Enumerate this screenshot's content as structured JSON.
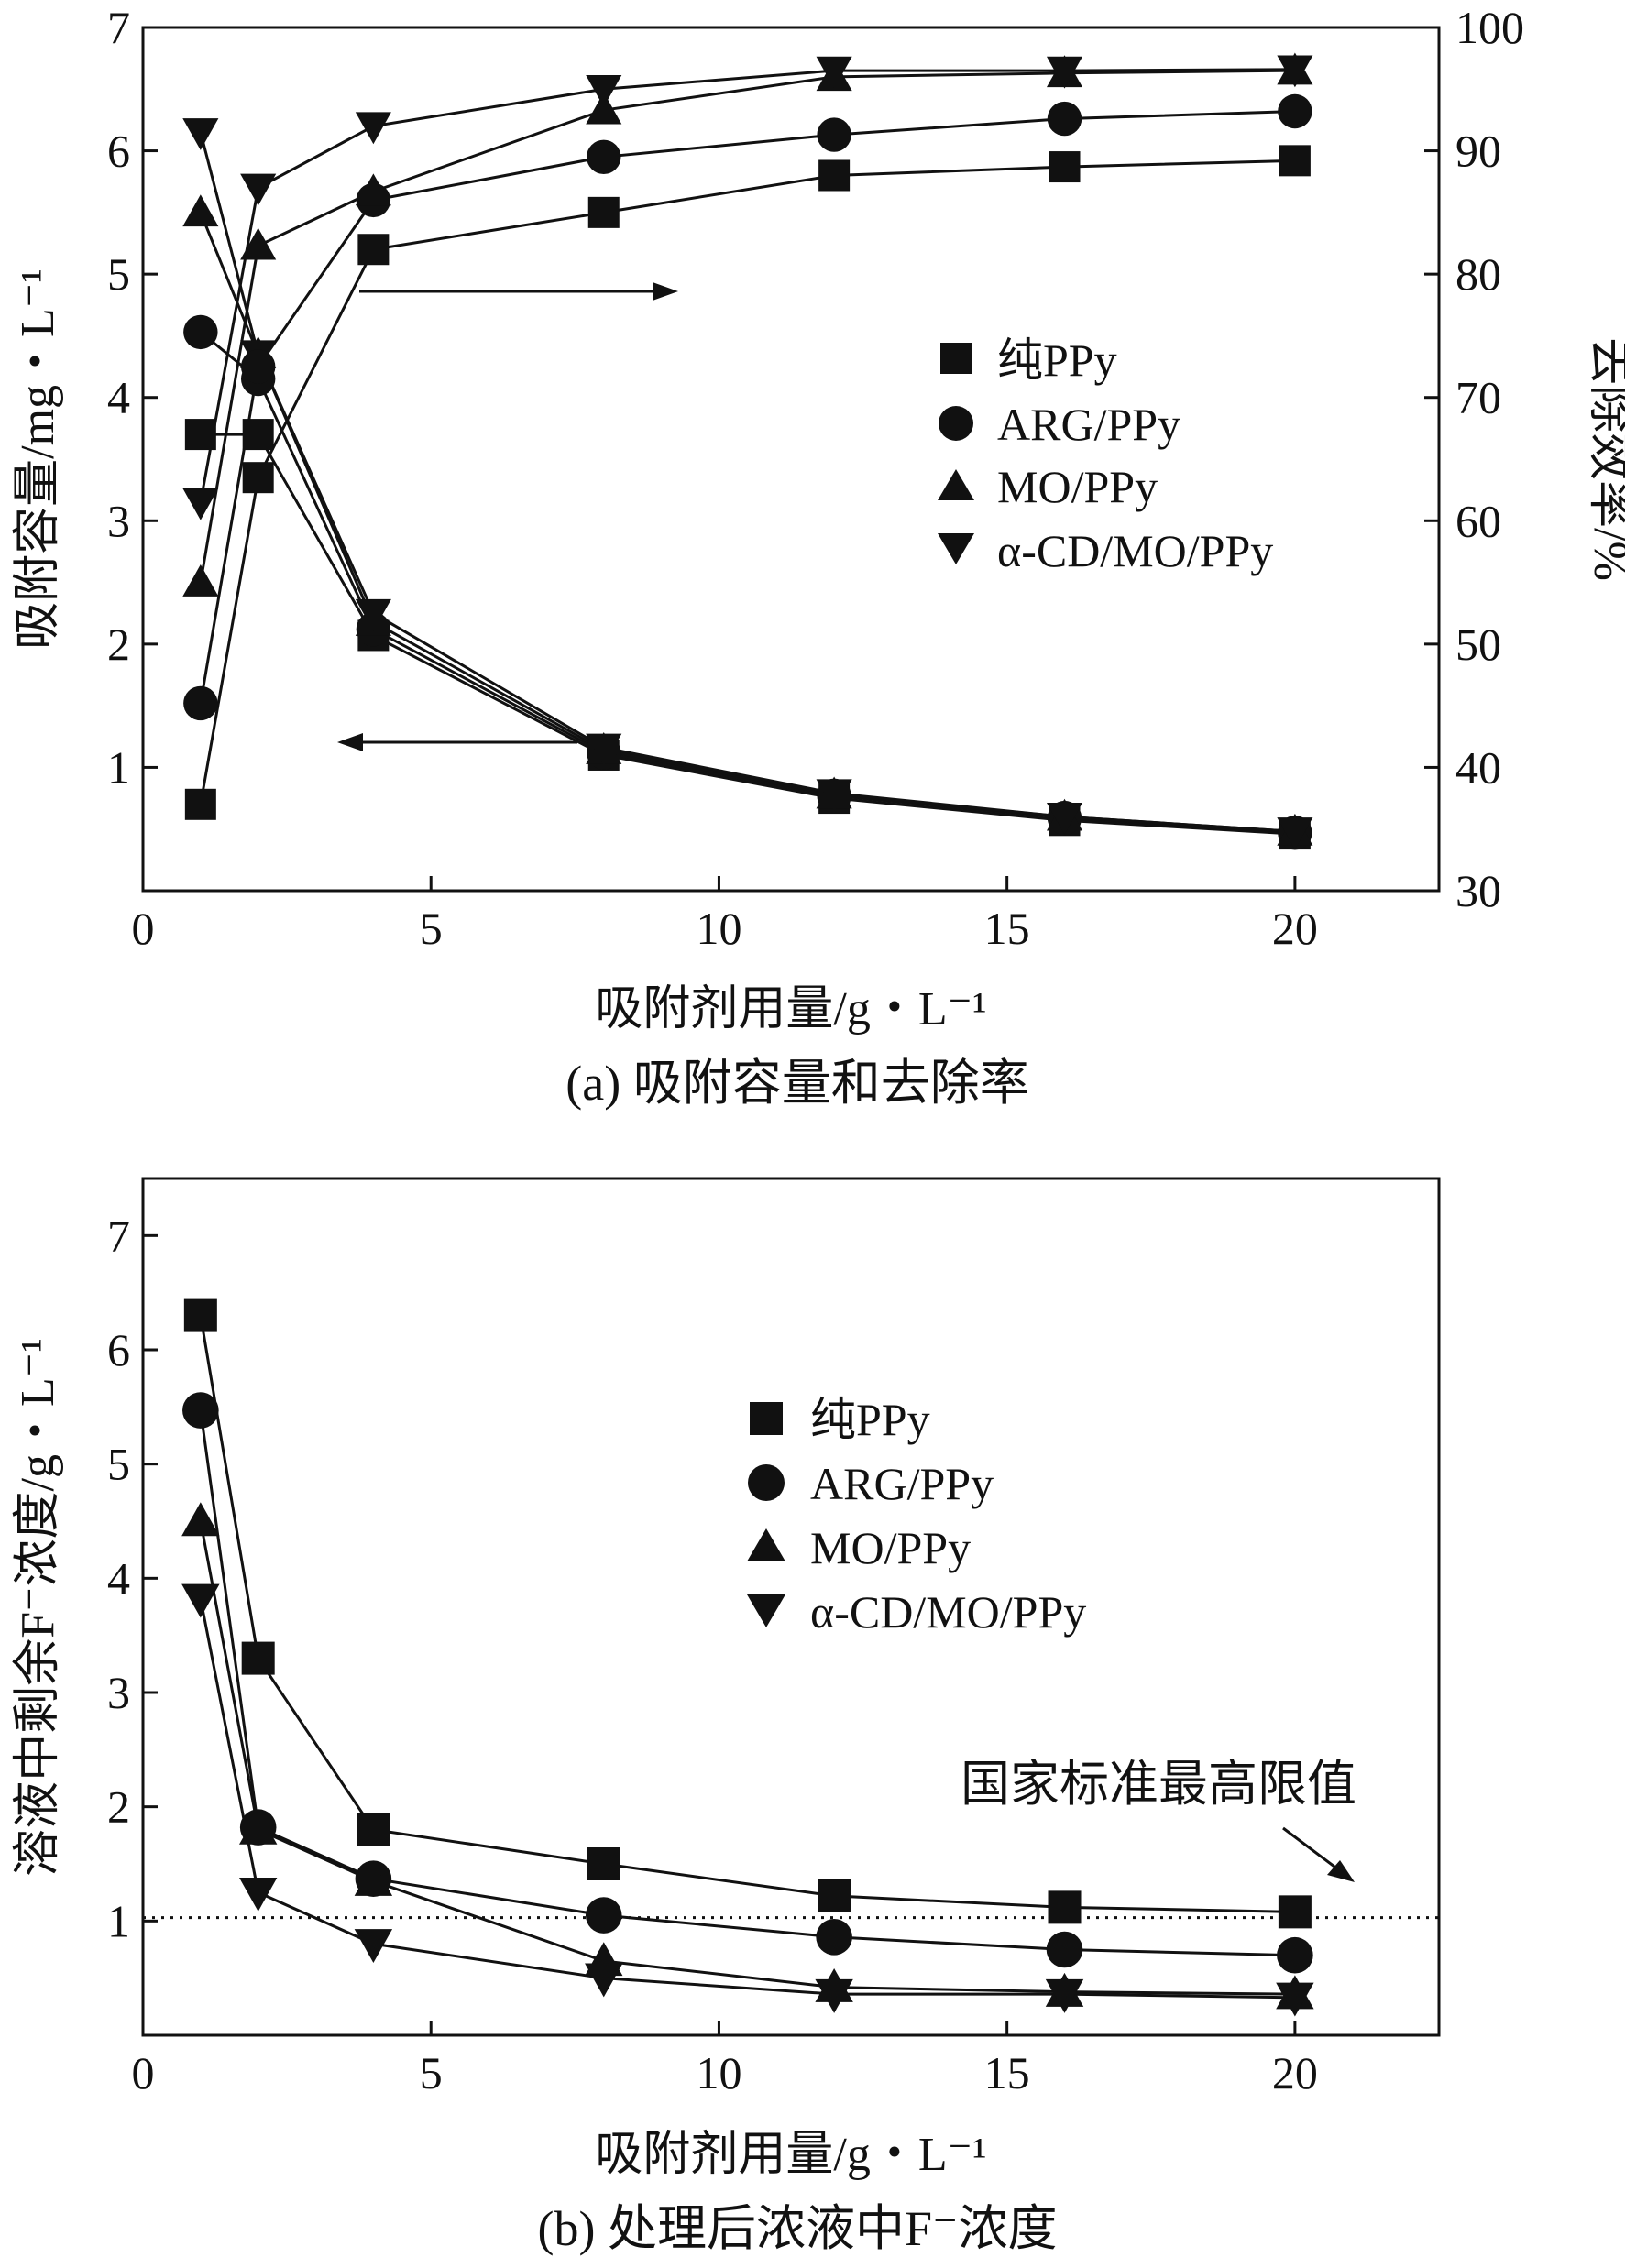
{
  "chart_data": [
    {
      "id": "a",
      "type": "line",
      "caption": "(a) 吸附容量和去除率",
      "xlabel": "吸附剂用量/g・L⁻¹",
      "ylabel_left": "吸附容量/mg・L⁻¹",
      "ylabel_right": "去除效率/%",
      "xlim": [
        0,
        22.5
      ],
      "ylim_left": [
        0,
        7
      ],
      "ylim_right": [
        30,
        100
      ],
      "x_ticks": [
        "0",
        "5",
        "10",
        "15",
        "20"
      ],
      "y_left_ticks": [
        "1",
        "2",
        "3",
        "4",
        "5",
        "6",
        "7"
      ],
      "y_right_ticks": [
        "30",
        "40",
        "50",
        "60",
        "70",
        "80",
        "90",
        "100"
      ],
      "annotations": [
        "removal-rate arrow (points right)",
        "capacity arrow (points left)"
      ],
      "x": [
        1,
        2,
        4,
        8,
        12,
        16,
        20
      ],
      "capacity_series": [
        {
          "name": "纯PPy",
          "marker": "square",
          "axis": "left",
          "values": [
            3.7,
            3.7,
            2.07,
            1.1,
            0.75,
            0.57,
            0.46
          ]
        },
        {
          "name": "ARG/PPy",
          "marker": "circle",
          "axis": "left",
          "values": [
            4.53,
            4.15,
            2.12,
            1.12,
            0.77,
            0.59,
            0.47
          ]
        },
        {
          "name": "MO/PPy",
          "marker": "triangle-up",
          "axis": "left",
          "values": [
            5.5,
            4.35,
            2.18,
            1.14,
            0.78,
            0.6,
            0.48
          ]
        },
        {
          "name": "α-CD/MO/PPy",
          "marker": "triangle-down",
          "axis": "left",
          "values": [
            6.15,
            4.35,
            2.25,
            1.16,
            0.79,
            0.6,
            0.48
          ]
        }
      ],
      "removal_series": [
        {
          "name": "纯PPy",
          "marker": "square",
          "axis": "right",
          "values": [
            37,
            63.5,
            82,
            85,
            88,
            88.7,
            89.2
          ]
        },
        {
          "name": "ARG/PPy",
          "marker": "circle",
          "axis": "right",
          "values": [
            45.2,
            72.5,
            86,
            89.5,
            91.3,
            92.6,
            93.2
          ]
        },
        {
          "name": "MO/PPy",
          "marker": "triangle-up",
          "axis": "right",
          "values": [
            55,
            82.3,
            86.7,
            93.3,
            96,
            96.3,
            96.5
          ]
        },
        {
          "name": "α-CD/MO/PPy",
          "marker": "triangle-down",
          "axis": "right",
          "values": [
            61.5,
            87,
            92,
            95,
            96.5,
            96.5,
            96.6
          ]
        }
      ]
    },
    {
      "id": "b",
      "type": "line",
      "caption": "(b) 处理后浓液中F⁻浓度",
      "xlabel": "吸附剂用量/g・L⁻¹",
      "ylabel": "溶液中剩余F⁻浓度/g・L⁻¹",
      "xlim": [
        0,
        22.5
      ],
      "ylim": [
        0,
        7.5
      ],
      "x_ticks": [
        "0",
        "5",
        "10",
        "15",
        "20"
      ],
      "y_ticks": [
        "1",
        "2",
        "3",
        "4",
        "5",
        "6",
        "7"
      ],
      "reference_line": {
        "label": "国家标准最高限值",
        "value": 1.03
      },
      "x": [
        1,
        2,
        4,
        8,
        12,
        16,
        20
      ],
      "series": [
        {
          "name": "纯PPy",
          "marker": "square",
          "values": [
            6.3,
            3.3,
            1.8,
            1.5,
            1.22,
            1.12,
            1.08
          ]
        },
        {
          "name": "ARG/PPy",
          "marker": "circle",
          "values": [
            5.47,
            1.82,
            1.37,
            1.05,
            0.86,
            0.75,
            0.7
          ]
        },
        {
          "name": "MO/PPy",
          "marker": "triangle-up",
          "values": [
            4.5,
            1.8,
            1.35,
            0.65,
            0.42,
            0.38,
            0.36
          ]
        },
        {
          "name": "α-CD/MO/PPy",
          "marker": "triangle-down",
          "values": [
            3.82,
            1.25,
            0.8,
            0.5,
            0.36,
            0.36,
            0.33
          ]
        }
      ]
    }
  ]
}
